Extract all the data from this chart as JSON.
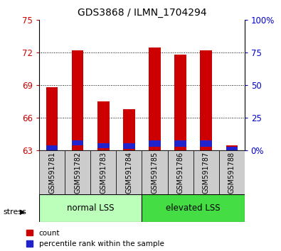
{
  "title": "GDS3868 / ILMN_1704294",
  "samples": [
    "GSM591781",
    "GSM591782",
    "GSM591783",
    "GSM591784",
    "GSM591785",
    "GSM591786",
    "GSM591787",
    "GSM591788"
  ],
  "red_tops": [
    68.8,
    72.2,
    67.5,
    66.8,
    72.5,
    71.8,
    72.2,
    63.5
  ],
  "blue_bottoms": [
    63.05,
    63.45,
    63.25,
    63.15,
    63.35,
    63.35,
    63.35,
    63.05
  ],
  "blue_tops": [
    63.45,
    63.95,
    63.65,
    63.65,
    63.95,
    63.95,
    63.95,
    63.35
  ],
  "ymin": 63,
  "ymax": 75,
  "yticks": [
    63,
    66,
    69,
    72,
    75
  ],
  "right_labels": [
    "0%",
    "25",
    "50",
    "75",
    "100%"
  ],
  "bar_width": 0.45,
  "red_color": "#cc0000",
  "blue_color": "#2222cc",
  "tick_color_left": "#cc0000",
  "tick_color_right": "#0000cc",
  "legend_red": "count",
  "legend_blue": "percentile rank within the sample",
  "group_box_color": "#cccccc",
  "normal_lss_color": "#bbffbb",
  "elevated_lss_color": "#44dd44",
  "grid_lines": [
    66,
    69,
    72
  ]
}
